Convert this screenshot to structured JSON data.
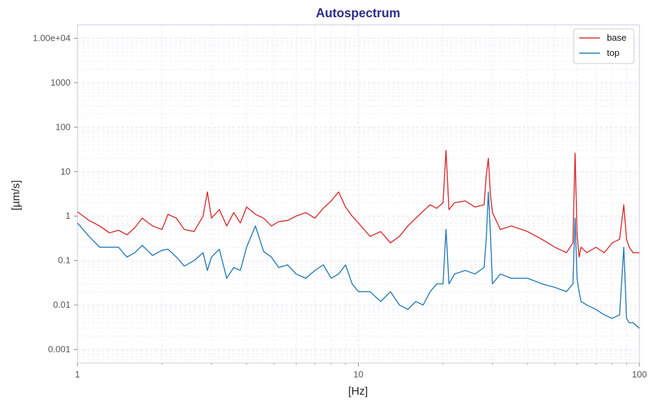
{
  "chart_data": {
    "type": "line",
    "title": "Autospectrum",
    "xlabel": "[Hz]",
    "ylabel": "[µm/s]",
    "xscale": "log",
    "yscale": "log",
    "xlim": [
      1,
      100
    ],
    "ylim": [
      0.0005,
      20000
    ],
    "x_ticks": [
      {
        "value": 1,
        "label": "1"
      },
      {
        "value": 10,
        "label": "10"
      },
      {
        "value": 100,
        "label": "100"
      }
    ],
    "y_ticks": [
      {
        "value": 0.001,
        "label": "0.001"
      },
      {
        "value": 0.01,
        "label": "0.01"
      },
      {
        "value": 0.1,
        "label": "0.1"
      },
      {
        "value": 1,
        "label": "1"
      },
      {
        "value": 10,
        "label": "10"
      },
      {
        "value": 100,
        "label": "100"
      },
      {
        "value": 1000,
        "label": "1000"
      },
      {
        "value": 10000,
        "label": "1.00e+04"
      }
    ],
    "grid": true,
    "legend_position": "top-right",
    "series": [
      {
        "name": "base",
        "color": "#d62728",
        "x": [
          1,
          1.1,
          1.2,
          1.3,
          1.4,
          1.5,
          1.6,
          1.7,
          1.85,
          2.0,
          2.1,
          2.25,
          2.4,
          2.6,
          2.8,
          2.9,
          3.0,
          3.2,
          3.4,
          3.6,
          3.8,
          4.0,
          4.3,
          4.6,
          4.9,
          5.2,
          5.6,
          6.0,
          6.5,
          7.0,
          7.5,
          8.0,
          8.5,
          9.0,
          9.5,
          10,
          11,
          12,
          13,
          14,
          15,
          16,
          17,
          18,
          19,
          20,
          20.5,
          21,
          22,
          24,
          26,
          28,
          28.5,
          29,
          29.5,
          30,
          32,
          35,
          40,
          45,
          50,
          55,
          58,
          59,
          60,
          61,
          62,
          65,
          70,
          75,
          80,
          85,
          88,
          90,
          92,
          95,
          100
        ],
        "y": [
          1.25,
          0.8,
          0.6,
          0.42,
          0.48,
          0.38,
          0.55,
          0.9,
          0.6,
          0.5,
          1.1,
          0.9,
          0.5,
          0.45,
          1.0,
          3.5,
          0.9,
          1.4,
          0.6,
          1.2,
          0.7,
          1.6,
          1.1,
          0.9,
          0.6,
          0.75,
          0.8,
          1.0,
          1.2,
          0.9,
          1.5,
          2.2,
          3.5,
          1.6,
          1.0,
          0.7,
          0.35,
          0.45,
          0.25,
          0.35,
          0.6,
          0.9,
          1.3,
          1.8,
          1.5,
          2.0,
          30,
          1.4,
          2.0,
          2.2,
          1.6,
          1.8,
          8,
          20,
          3,
          1.2,
          0.5,
          0.6,
          0.45,
          0.3,
          0.2,
          0.15,
          0.25,
          26,
          0.4,
          0.12,
          0.2,
          0.15,
          0.2,
          0.15,
          0.25,
          0.3,
          1.8,
          0.3,
          0.2,
          0.15,
          0.15
        ]
      },
      {
        "name": "top",
        "color": "#1f77b4",
        "x": [
          1,
          1.1,
          1.2,
          1.3,
          1.4,
          1.5,
          1.6,
          1.7,
          1.85,
          2.0,
          2.1,
          2.25,
          2.4,
          2.6,
          2.8,
          2.9,
          3.0,
          3.2,
          3.4,
          3.6,
          3.8,
          4.0,
          4.3,
          4.6,
          4.9,
          5.2,
          5.6,
          6.0,
          6.5,
          7.0,
          7.5,
          8.0,
          8.5,
          9.0,
          9.5,
          10,
          11,
          12,
          13,
          14,
          15,
          16,
          17,
          18,
          19,
          20,
          20.5,
          21,
          22,
          24,
          26,
          28,
          28.5,
          29,
          29.5,
          30,
          32,
          35,
          40,
          45,
          50,
          55,
          58,
          59,
          60,
          61,
          62,
          65,
          70,
          75,
          80,
          85,
          88,
          90,
          92,
          95,
          100
        ],
        "y": [
          0.7,
          0.35,
          0.2,
          0.2,
          0.2,
          0.12,
          0.15,
          0.22,
          0.13,
          0.17,
          0.18,
          0.12,
          0.075,
          0.1,
          0.15,
          0.06,
          0.12,
          0.18,
          0.04,
          0.07,
          0.06,
          0.2,
          0.6,
          0.16,
          0.12,
          0.07,
          0.08,
          0.05,
          0.04,
          0.06,
          0.08,
          0.04,
          0.05,
          0.08,
          0.03,
          0.02,
          0.02,
          0.012,
          0.02,
          0.01,
          0.008,
          0.012,
          0.01,
          0.02,
          0.03,
          0.03,
          0.5,
          0.03,
          0.05,
          0.06,
          0.05,
          0.07,
          0.3,
          3.5,
          0.4,
          0.03,
          0.05,
          0.04,
          0.04,
          0.03,
          0.025,
          0.02,
          0.03,
          0.9,
          0.04,
          0.02,
          0.012,
          0.01,
          0.008,
          0.006,
          0.005,
          0.006,
          0.2,
          0.005,
          0.004,
          0.004,
          0.003
        ]
      }
    ]
  }
}
